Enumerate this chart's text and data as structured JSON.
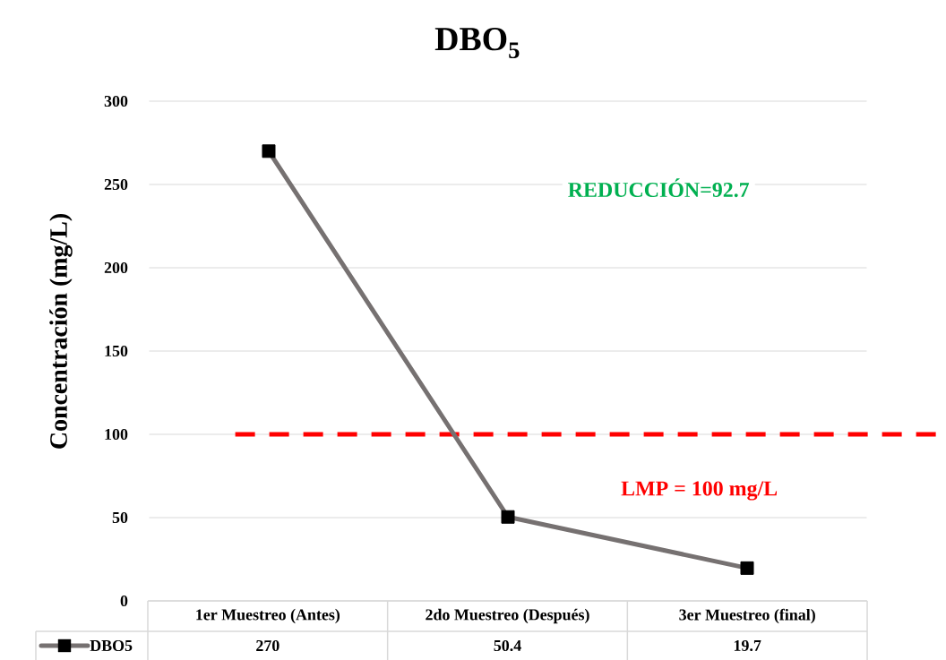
{
  "chart_data": {
    "type": "line",
    "title": "DBO$_{5}$",
    "ylabel": "Concentración (mg/L)",
    "categories": [
      "1er Muestreo (Antes)",
      "2do Muestreo (Después)",
      "3er Muestreo (final)"
    ],
    "series": [
      {
        "name": "DBO5",
        "color": "#767171",
        "values": [
          270,
          50.4,
          19.7
        ]
      }
    ],
    "ylim": [
      0,
      300
    ],
    "yticks": [
      0,
      50,
      100,
      150,
      200,
      250,
      300
    ],
    "grid": "y",
    "marker": "square",
    "line_style": "solid",
    "legend": "bottom",
    "data_labels": true,
    "ref_lines": [
      {
        "axis": "y",
        "value": 100,
        "label": "LMP = 100 mg/L",
        "color": "#ff0000",
        "line_style": "dashed"
      }
    ],
    "annotations": [
      "REDUCCIÓN=92.7"
    ]
  }
}
